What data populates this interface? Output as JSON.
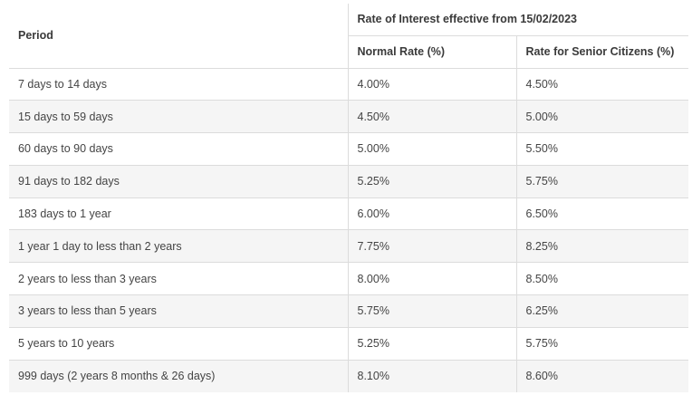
{
  "table": {
    "header": {
      "period": "Period",
      "group": "Rate of Interest effective from 15/02/2023",
      "normal": "Normal Rate (%)",
      "senior": "Rate for Senior Citizens (%)"
    },
    "rows": [
      {
        "period": "7 days to 14 days",
        "normal": "4.00%",
        "senior": "4.50%"
      },
      {
        "period": "15 days to 59 days",
        "normal": "4.50%",
        "senior": "5.00%"
      },
      {
        "period": "60 days to 90 days",
        "normal": "5.00%",
        "senior": "5.50%"
      },
      {
        "period": "91 days to 182 days",
        "normal": "5.25%",
        "senior": "5.75%"
      },
      {
        "period": "183 days to 1 year",
        "normal": "6.00%",
        "senior": "6.50%"
      },
      {
        "period": "1 year 1 day to less than 2 years",
        "normal": "7.75%",
        "senior": "8.25%"
      },
      {
        "period": "2 years to less than 3 years",
        "normal": "8.00%",
        "senior": "8.50%"
      },
      {
        "period": "3 years to less than 5 years",
        "normal": "5.75%",
        "senior": "6.25%"
      },
      {
        "period": "5 years to 10 years",
        "normal": "5.25%",
        "senior": "5.75%"
      },
      {
        "period": "999 days (2 years 8 months & 26 days)",
        "normal": "8.10%",
        "senior": "8.60%"
      }
    ]
  }
}
